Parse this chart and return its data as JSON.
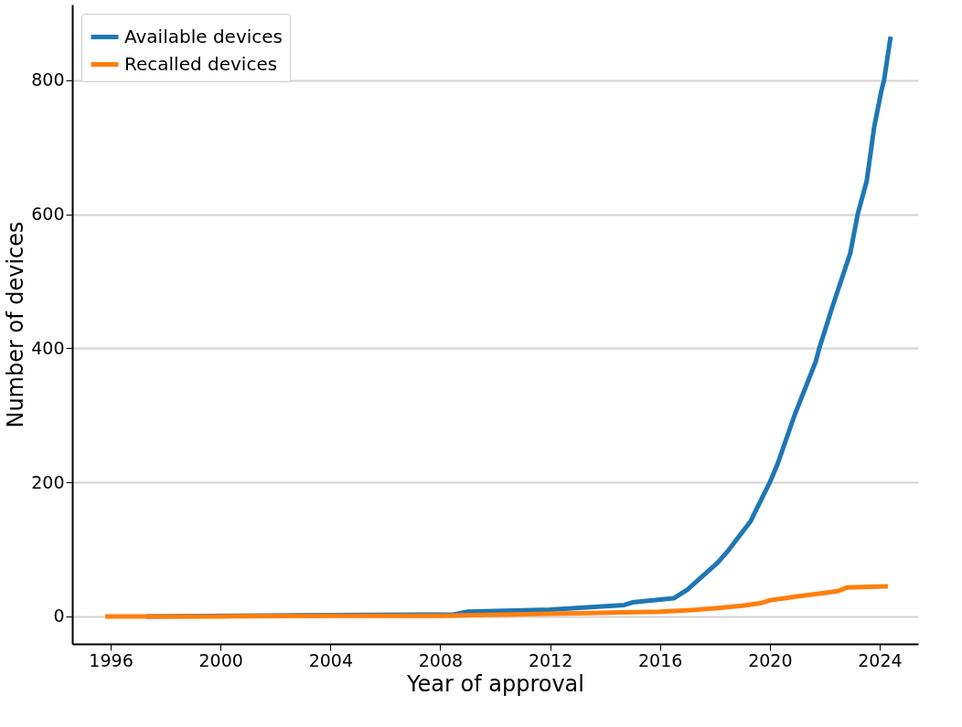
{
  "chart_data": {
    "type": "line",
    "xlabel": "Year of approval",
    "ylabel": "Number of devices",
    "xlim": [
      1994.6,
      2025.4
    ],
    "ylim": [
      -41,
      913
    ],
    "xticks": [
      1996,
      2000,
      2004,
      2008,
      2012,
      2016,
      2020,
      2024
    ],
    "yticks": [
      0,
      200,
      400,
      600,
      800
    ],
    "grid": "y",
    "legend": "top left",
    "series": [
      {
        "name": "Available devices",
        "color": "#1f77b4",
        "x": [
          1997.3,
          2004,
          2008.5,
          2009,
          2012,
          2014.7,
          2015,
          2016.5,
          2017,
          2018.1,
          2018.5,
          2019.3,
          2020.0,
          2020.27,
          2020.9,
          2021.67,
          2021.8,
          2022.27,
          2022.93,
          2023.2,
          2023.53,
          2023.8,
          2024.06,
          2024.16,
          2024.4
        ],
        "values": [
          0,
          2,
          3,
          7,
          10,
          17,
          21,
          27,
          40,
          80,
          99,
          142,
          200,
          226,
          300,
          380,
          400,
          461,
          542,
          600,
          650,
          730,
          784,
          800,
          865
        ]
      },
      {
        "name": "Recalled devices",
        "color": "#ff7f0e",
        "x": [
          1995.8,
          2000,
          2004,
          2008,
          2012,
          2016,
          2017,
          2018,
          2019,
          2019.7,
          2020,
          2021,
          2022,
          2022.5,
          2022.8,
          2024.3
        ],
        "values": [
          0,
          0,
          1,
          1,
          4,
          7,
          9,
          12,
          16,
          20,
          24,
          30,
          35,
          38,
          43,
          45
        ]
      }
    ]
  }
}
